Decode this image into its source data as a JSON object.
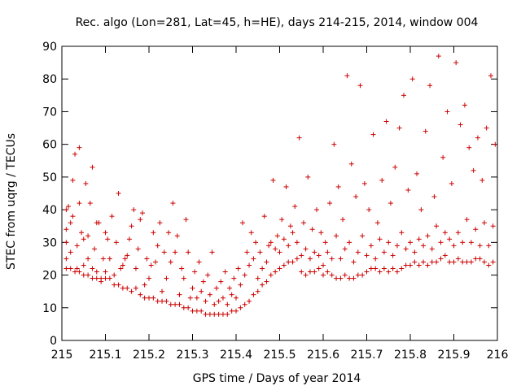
{
  "chart_data": {
    "type": "scatter",
    "title": "Rec. algo (Lon=281, Lat=45, h=HE), days 214-215, 2014, window 004",
    "xlabel": "GPS time / Days of year 2014",
    "ylabel": "STEC from uqrg / TECUs",
    "xlim": [
      215,
      216
    ],
    "ylim": [
      0,
      90
    ],
    "xticks": [
      "215",
      "215.1",
      "215.2",
      "215.3",
      "215.4",
      "215.5",
      "215.6",
      "215.7",
      "215.8",
      "215.9",
      "216"
    ],
    "yticks": [
      "0",
      "10",
      "20",
      "30",
      "40",
      "50",
      "60",
      "70",
      "80",
      "90"
    ],
    "grid": false,
    "legend": "none",
    "marker": "plus",
    "color": "#cc0000",
    "points": [
      [
        215.01,
        22
      ],
      [
        215.01,
        25
      ],
      [
        215.01,
        30
      ],
      [
        215.01,
        34
      ],
      [
        215.01,
        40
      ],
      [
        215.015,
        41
      ],
      [
        215.02,
        22
      ],
      [
        215.02,
        27
      ],
      [
        215.02,
        36
      ],
      [
        215.025,
        38
      ],
      [
        215.025,
        49
      ],
      [
        215.03,
        21
      ],
      [
        215.03,
        57
      ],
      [
        215.035,
        22
      ],
      [
        215.035,
        29
      ],
      [
        215.04,
        21
      ],
      [
        215.04,
        42
      ],
      [
        215.04,
        59
      ],
      [
        215.045,
        33
      ],
      [
        215.05,
        20
      ],
      [
        215.05,
        23
      ],
      [
        215.05,
        31
      ],
      [
        215.055,
        48
      ],
      [
        215.06,
        20
      ],
      [
        215.06,
        25
      ],
      [
        215.06,
        32
      ],
      [
        215.065,
        42
      ],
      [
        215.07,
        19
      ],
      [
        215.07,
        22
      ],
      [
        215.07,
        53
      ],
      [
        215.075,
        28
      ],
      [
        215.08,
        19
      ],
      [
        215.08,
        21
      ],
      [
        215.08,
        36
      ],
      [
        215.085,
        36
      ],
      [
        215.09,
        18
      ],
      [
        215.09,
        19
      ],
      [
        215.095,
        25
      ],
      [
        215.1,
        19
      ],
      [
        215.1,
        21
      ],
      [
        215.1,
        33
      ],
      [
        215.105,
        31
      ],
      [
        215.11,
        19
      ],
      [
        215.11,
        25
      ],
      [
        215.115,
        38
      ],
      [
        215.12,
        20
      ],
      [
        215.12,
        17
      ],
      [
        215.125,
        30
      ],
      [
        215.13,
        17
      ],
      [
        215.13,
        45
      ],
      [
        215.135,
        22
      ],
      [
        215.14,
        16
      ],
      [
        215.14,
        23
      ],
      [
        215.145,
        25
      ],
      [
        215.15,
        16
      ],
      [
        215.15,
        26
      ],
      [
        215.155,
        31
      ],
      [
        215.16,
        15
      ],
      [
        215.16,
        35
      ],
      [
        215.165,
        40
      ],
      [
        215.17,
        16
      ],
      [
        215.17,
        22
      ],
      [
        215.175,
        28
      ],
      [
        215.18,
        14
      ],
      [
        215.18,
        37
      ],
      [
        215.185,
        39
      ],
      [
        215.19,
        13
      ],
      [
        215.19,
        17
      ],
      [
        215.195,
        25
      ],
      [
        215.2,
        13
      ],
      [
        215.2,
        19
      ],
      [
        215.205,
        23
      ],
      [
        215.21,
        13
      ],
      [
        215.21,
        33
      ],
      [
        215.215,
        24
      ],
      [
        215.22,
        12
      ],
      [
        215.22,
        29
      ],
      [
        215.225,
        36
      ],
      [
        215.23,
        12
      ],
      [
        215.23,
        15
      ],
      [
        215.235,
        27
      ],
      [
        215.24,
        12
      ],
      [
        215.24,
        19
      ],
      [
        215.245,
        33
      ],
      [
        215.25,
        11
      ],
      [
        215.25,
        24
      ],
      [
        215.255,
        42
      ],
      [
        215.26,
        11
      ],
      [
        215.26,
        27
      ],
      [
        215.265,
        32
      ],
      [
        215.27,
        11
      ],
      [
        215.27,
        14
      ],
      [
        215.275,
        22
      ],
      [
        215.28,
        10
      ],
      [
        215.28,
        19
      ],
      [
        215.285,
        37
      ],
      [
        215.29,
        10
      ],
      [
        215.29,
        27
      ],
      [
        215.295,
        13
      ],
      [
        215.3,
        9
      ],
      [
        215.3,
        16
      ],
      [
        215.305,
        21
      ],
      [
        215.31,
        9
      ],
      [
        215.31,
        13
      ],
      [
        215.315,
        24
      ],
      [
        215.32,
        9
      ],
      [
        215.32,
        15
      ],
      [
        215.325,
        18
      ],
      [
        215.33,
        8
      ],
      [
        215.33,
        12
      ],
      [
        215.335,
        20
      ],
      [
        215.34,
        8
      ],
      [
        215.34,
        14
      ],
      [
        215.345,
        27
      ],
      [
        215.35,
        8
      ],
      [
        215.35,
        11
      ],
      [
        215.355,
        16
      ],
      [
        215.36,
        8
      ],
      [
        215.36,
        12
      ],
      [
        215.365,
        18
      ],
      [
        215.37,
        8
      ],
      [
        215.37,
        13
      ],
      [
        215.375,
        21
      ],
      [
        215.38,
        8
      ],
      [
        215.38,
        11
      ],
      [
        215.385,
        16
      ],
      [
        215.39,
        9
      ],
      [
        215.39,
        14
      ],
      [
        215.395,
        19
      ],
      [
        215.4,
        9
      ],
      [
        215.4,
        13
      ],
      [
        215.405,
        22
      ],
      [
        215.41,
        10
      ],
      [
        215.41,
        17
      ],
      [
        215.415,
        36
      ],
      [
        215.42,
        11
      ],
      [
        215.42,
        20
      ],
      [
        215.425,
        27
      ],
      [
        215.43,
        12
      ],
      [
        215.43,
        23
      ],
      [
        215.435,
        33
      ],
      [
        215.44,
        14
      ],
      [
        215.44,
        25
      ],
      [
        215.445,
        30
      ],
      [
        215.45,
        15
      ],
      [
        215.45,
        19
      ],
      [
        215.455,
        27
      ],
      [
        215.46,
        17
      ],
      [
        215.46,
        22
      ],
      [
        215.465,
        38
      ],
      [
        215.47,
        18
      ],
      [
        215.47,
        24
      ],
      [
        215.475,
        29
      ],
      [
        215.48,
        20
      ],
      [
        215.48,
        30
      ],
      [
        215.485,
        49
      ],
      [
        215.49,
        21
      ],
      [
        215.49,
        28
      ],
      [
        215.495,
        32
      ],
      [
        215.5,
        22
      ],
      [
        215.5,
        27
      ],
      [
        215.505,
        37
      ],
      [
        215.51,
        23
      ],
      [
        215.51,
        31
      ],
      [
        215.515,
        47
      ],
      [
        215.52,
        24
      ],
      [
        215.52,
        29
      ],
      [
        215.525,
        35
      ],
      [
        215.53,
        24
      ],
      [
        215.53,
        33
      ],
      [
        215.535,
        41
      ],
      [
        215.54,
        25
      ],
      [
        215.54,
        30
      ],
      [
        215.545,
        62
      ],
      [
        215.55,
        21
      ],
      [
        215.55,
        26
      ],
      [
        215.555,
        36
      ],
      [
        215.56,
        20
      ],
      [
        215.56,
        28
      ],
      [
        215.565,
        50
      ],
      [
        215.57,
        21
      ],
      [
        215.57,
        25
      ],
      [
        215.575,
        34
      ],
      [
        215.58,
        21
      ],
      [
        215.58,
        27
      ],
      [
        215.585,
        40
      ],
      [
        215.59,
        22
      ],
      [
        215.59,
        26
      ],
      [
        215.595,
        33
      ],
      [
        215.6,
        20
      ],
      [
        215.6,
        23
      ],
      [
        215.605,
        30
      ],
      [
        215.61,
        21
      ],
      [
        215.61,
        27
      ],
      [
        215.615,
        42
      ],
      [
        215.62,
        20
      ],
      [
        215.62,
        25
      ],
      [
        215.625,
        60
      ],
      [
        215.63,
        19
      ],
      [
        215.63,
        32
      ],
      [
        215.635,
        47
      ],
      [
        215.64,
        19
      ],
      [
        215.64,
        25
      ],
      [
        215.645,
        37
      ],
      [
        215.65,
        20
      ],
      [
        215.65,
        28
      ],
      [
        215.655,
        81
      ],
      [
        215.66,
        19
      ],
      [
        215.66,
        30
      ],
      [
        215.665,
        54
      ],
      [
        215.67,
        19
      ],
      [
        215.67,
        24
      ],
      [
        215.675,
        44
      ],
      [
        215.68,
        20
      ],
      [
        215.68,
        27
      ],
      [
        215.685,
        78
      ],
      [
        215.69,
        20
      ],
      [
        215.69,
        32
      ],
      [
        215.695,
        48
      ],
      [
        215.7,
        21
      ],
      [
        215.7,
        26
      ],
      [
        215.705,
        40
      ],
      [
        215.71,
        22
      ],
      [
        215.71,
        29
      ],
      [
        215.715,
        63
      ],
      [
        215.72,
        22
      ],
      [
        215.72,
        25
      ],
      [
        215.725,
        36
      ],
      [
        215.73,
        21
      ],
      [
        215.73,
        31
      ],
      [
        215.735,
        49
      ],
      [
        215.74,
        22
      ],
      [
        215.74,
        27
      ],
      [
        215.745,
        67
      ],
      [
        215.75,
        21
      ],
      [
        215.75,
        30
      ],
      [
        215.755,
        42
      ],
      [
        215.76,
        22
      ],
      [
        215.76,
        26
      ],
      [
        215.765,
        53
      ],
      [
        215.77,
        21
      ],
      [
        215.77,
        29
      ],
      [
        215.775,
        65
      ],
      [
        215.78,
        22
      ],
      [
        215.78,
        33
      ],
      [
        215.785,
        75
      ],
      [
        215.79,
        23
      ],
      [
        215.79,
        28
      ],
      [
        215.795,
        46
      ],
      [
        215.8,
        23
      ],
      [
        215.8,
        30
      ],
      [
        215.805,
        80
      ],
      [
        215.81,
        24
      ],
      [
        215.81,
        27
      ],
      [
        215.815,
        51
      ],
      [
        215.82,
        23
      ],
      [
        215.82,
        31
      ],
      [
        215.825,
        40
      ],
      [
        215.83,
        24
      ],
      [
        215.83,
        29
      ],
      [
        215.835,
        64
      ],
      [
        215.84,
        23
      ],
      [
        215.84,
        32
      ],
      [
        215.845,
        78
      ],
      [
        215.85,
        24
      ],
      [
        215.85,
        28
      ],
      [
        215.855,
        44
      ],
      [
        215.86,
        24
      ],
      [
        215.86,
        35
      ],
      [
        215.865,
        87
      ],
      [
        215.87,
        25
      ],
      [
        215.87,
        30
      ],
      [
        215.875,
        56
      ],
      [
        215.88,
        26
      ],
      [
        215.88,
        33
      ],
      [
        215.885,
        70
      ],
      [
        215.89,
        24
      ],
      [
        215.89,
        31
      ],
      [
        215.895,
        48
      ],
      [
        215.9,
        24
      ],
      [
        215.9,
        29
      ],
      [
        215.905,
        85
      ],
      [
        215.91,
        25
      ],
      [
        215.91,
        33
      ],
      [
        215.915,
        66
      ],
      [
        215.92,
        24
      ],
      [
        215.92,
        30
      ],
      [
        215.925,
        72
      ],
      [
        215.93,
        24
      ],
      [
        215.93,
        37
      ],
      [
        215.935,
        59
      ],
      [
        215.94,
        24
      ],
      [
        215.94,
        30
      ],
      [
        215.945,
        52
      ],
      [
        215.95,
        25
      ],
      [
        215.95,
        34
      ],
      [
        215.955,
        62
      ],
      [
        215.96,
        25
      ],
      [
        215.96,
        29
      ],
      [
        215.965,
        49
      ],
      [
        215.97,
        24
      ],
      [
        215.97,
        36
      ],
      [
        215.975,
        65
      ],
      [
        215.98,
        23
      ],
      [
        215.98,
        29
      ],
      [
        215.985,
        81
      ],
      [
        215.99,
        24
      ],
      [
        215.99,
        35
      ],
      [
        215.995,
        60
      ]
    ]
  }
}
